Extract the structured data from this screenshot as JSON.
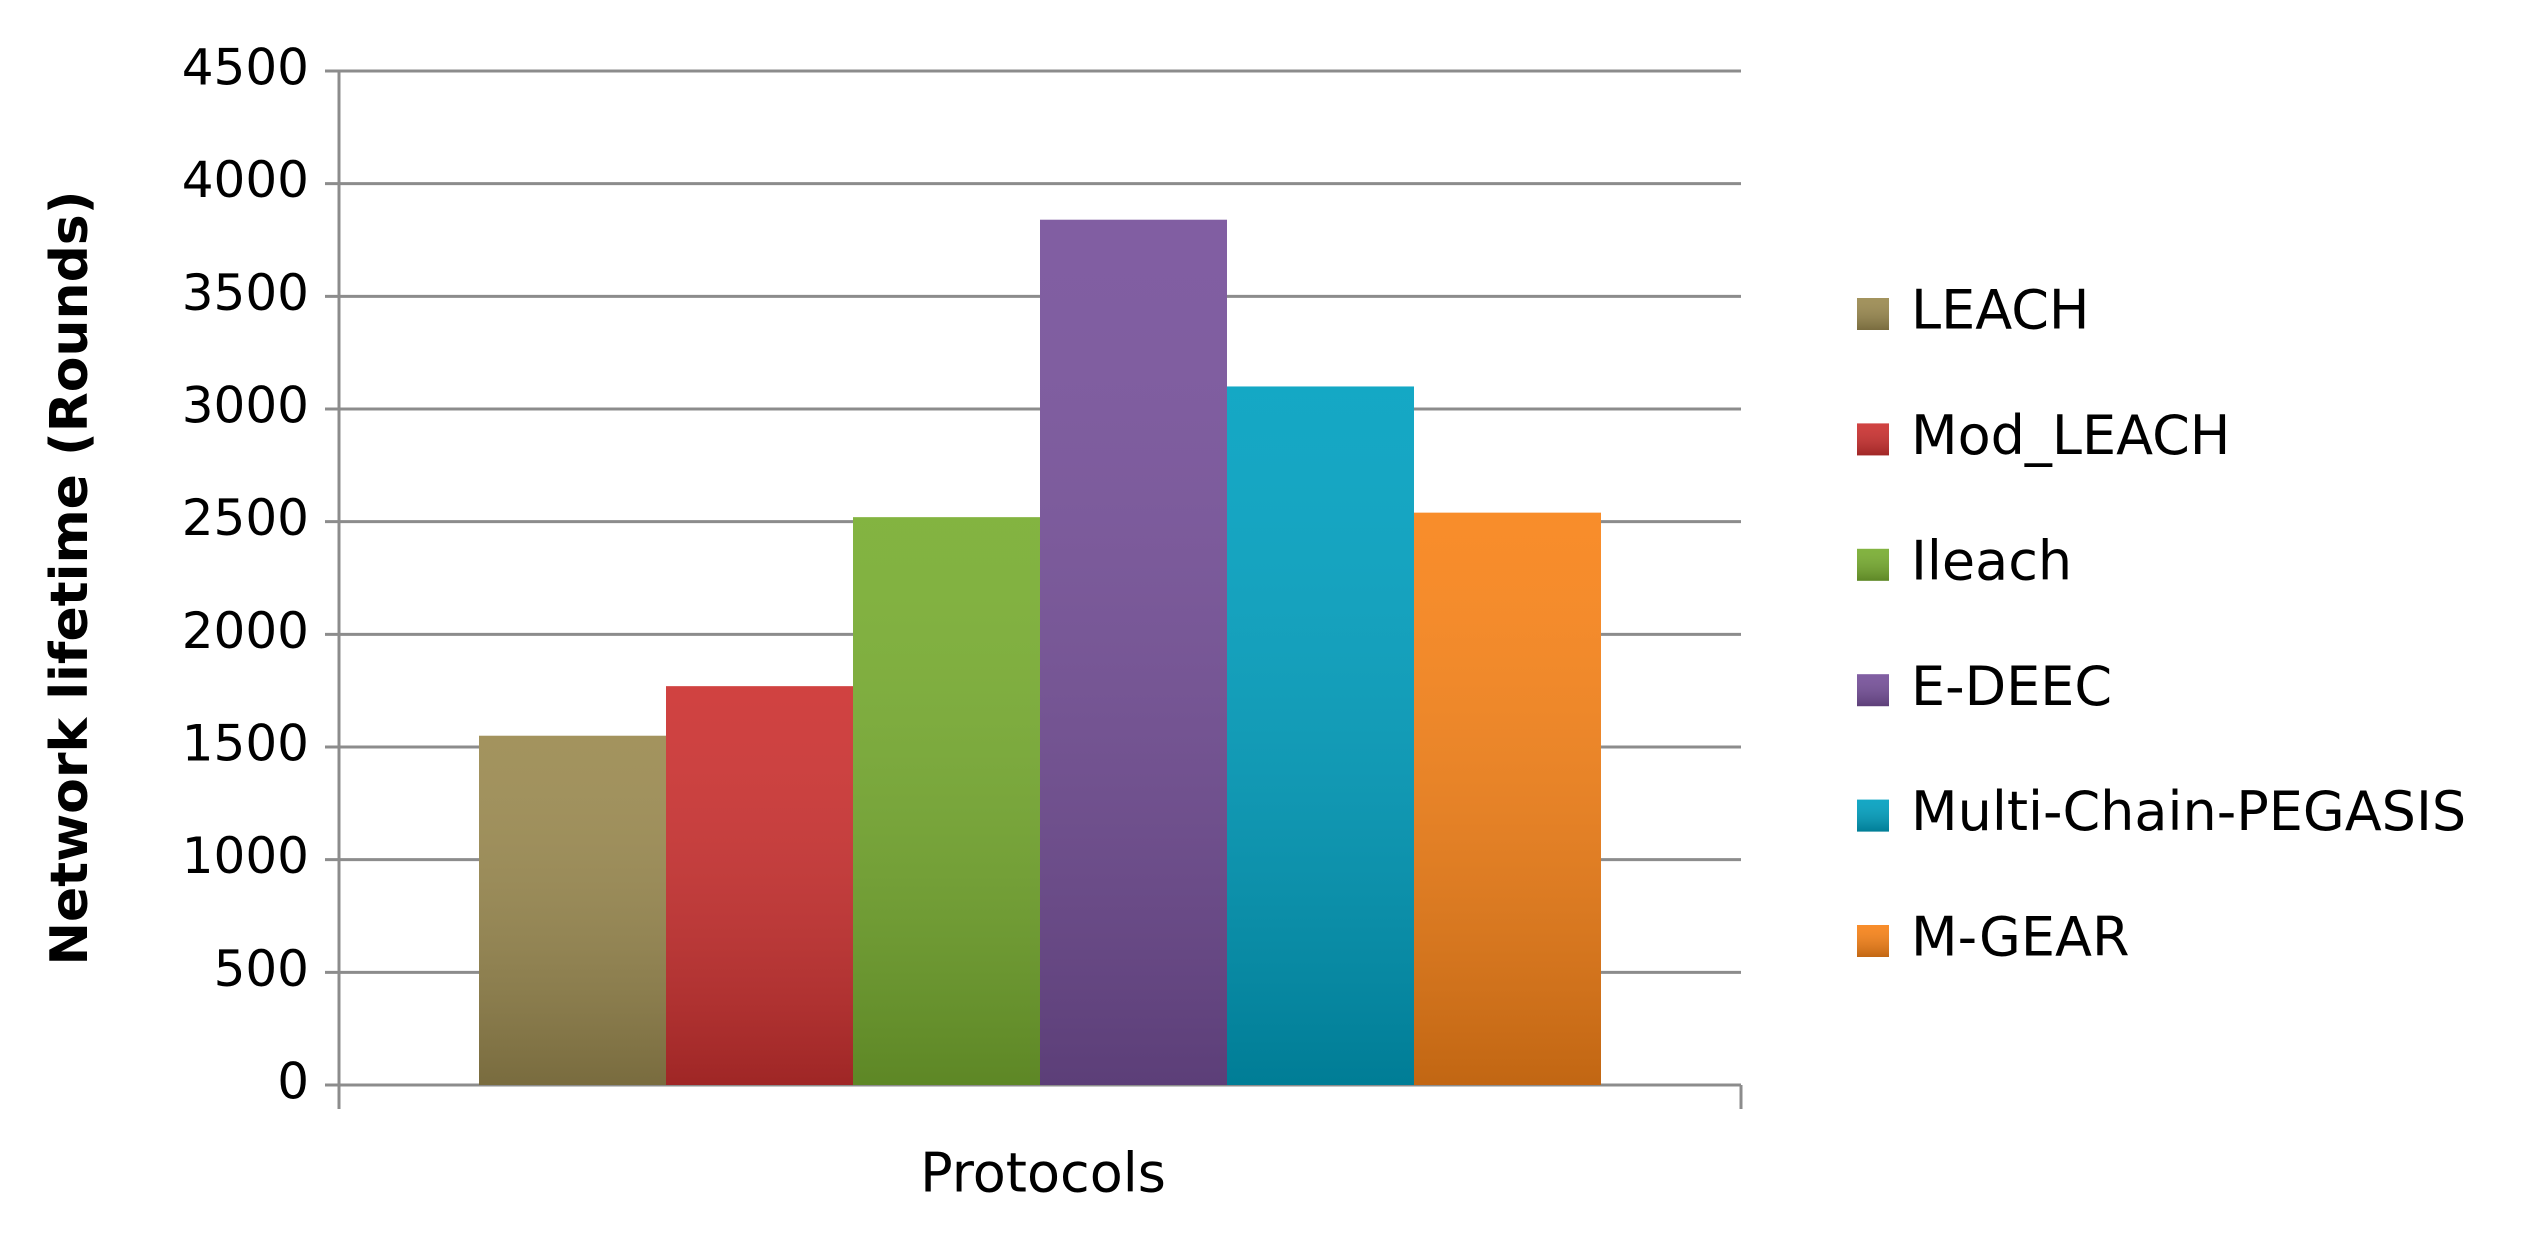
{
  "chart_data": {
    "type": "bar",
    "y_label": "Network lifetime (Rounds)",
    "x_label": "Protocols",
    "series": [
      {
        "name": "LEACH",
        "color": "#9b8a50",
        "values": [
          1550
        ]
      },
      {
        "name": "Mod_LEACH",
        "color": "#cc3130",
        "values": [
          1770
        ]
      },
      {
        "name": "Ileach",
        "color": "#78ad30",
        "values": [
          2520
        ]
      },
      {
        "name": "E-DEEC",
        "color": "#76509a",
        "values": [
          3840
        ]
      },
      {
        "name": "Multi-Chain-PEGASIS",
        "color": "#00a0c0",
        "values": [
          3100
        ]
      },
      {
        "name": "M-GEAR",
        "color": "#f88318",
        "values": [
          2540
        ]
      }
    ],
    "ylim": [
      0,
      4500
    ],
    "yticks": [
      0,
      500,
      1000,
      1500,
      2000,
      2500,
      3000,
      3500,
      4000,
      4500
    ],
    "grid": true,
    "legend": "right"
  }
}
